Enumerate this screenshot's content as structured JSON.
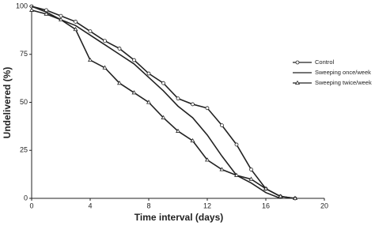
{
  "chart_data": {
    "type": "line",
    "x_label": "Time interval (days)",
    "y_label": "Undelivered (%)",
    "x": [
      0,
      1,
      2,
      3,
      4,
      5,
      6,
      7,
      8,
      9,
      10,
      11,
      12,
      13,
      14,
      15,
      16,
      17,
      18
    ],
    "series": [
      {
        "name": "Control",
        "color": "#222222",
        "marker": "circle",
        "values": [
          100,
          98,
          95,
          92,
          87,
          82,
          78,
          72,
          65,
          60,
          52,
          49,
          47,
          38,
          28,
          15,
          5,
          1,
          0
        ]
      },
      {
        "name": "Sweeping once/week",
        "color": "#222222",
        "marker": "none",
        "values": [
          100,
          97,
          93,
          90,
          85,
          80,
          75,
          70,
          63,
          56,
          48,
          42,
          33,
          22,
          12,
          8,
          3,
          0,
          null
        ]
      },
      {
        "name": "Sweeping twice/week",
        "color": "#222222",
        "marker": "triangle",
        "values": [
          98,
          96,
          93,
          88,
          72,
          68,
          60,
          55,
          50,
          42,
          35,
          30,
          20,
          15,
          12,
          10,
          5,
          1,
          0
        ]
      }
    ],
    "xlim": [
      0,
      20
    ],
    "xticks": [
      0,
      4,
      8,
      12,
      16,
      20
    ],
    "ylim": [
      0,
      100
    ],
    "yticks": [
      0,
      25,
      50,
      75,
      100
    ],
    "grid": false,
    "legend": "right"
  }
}
